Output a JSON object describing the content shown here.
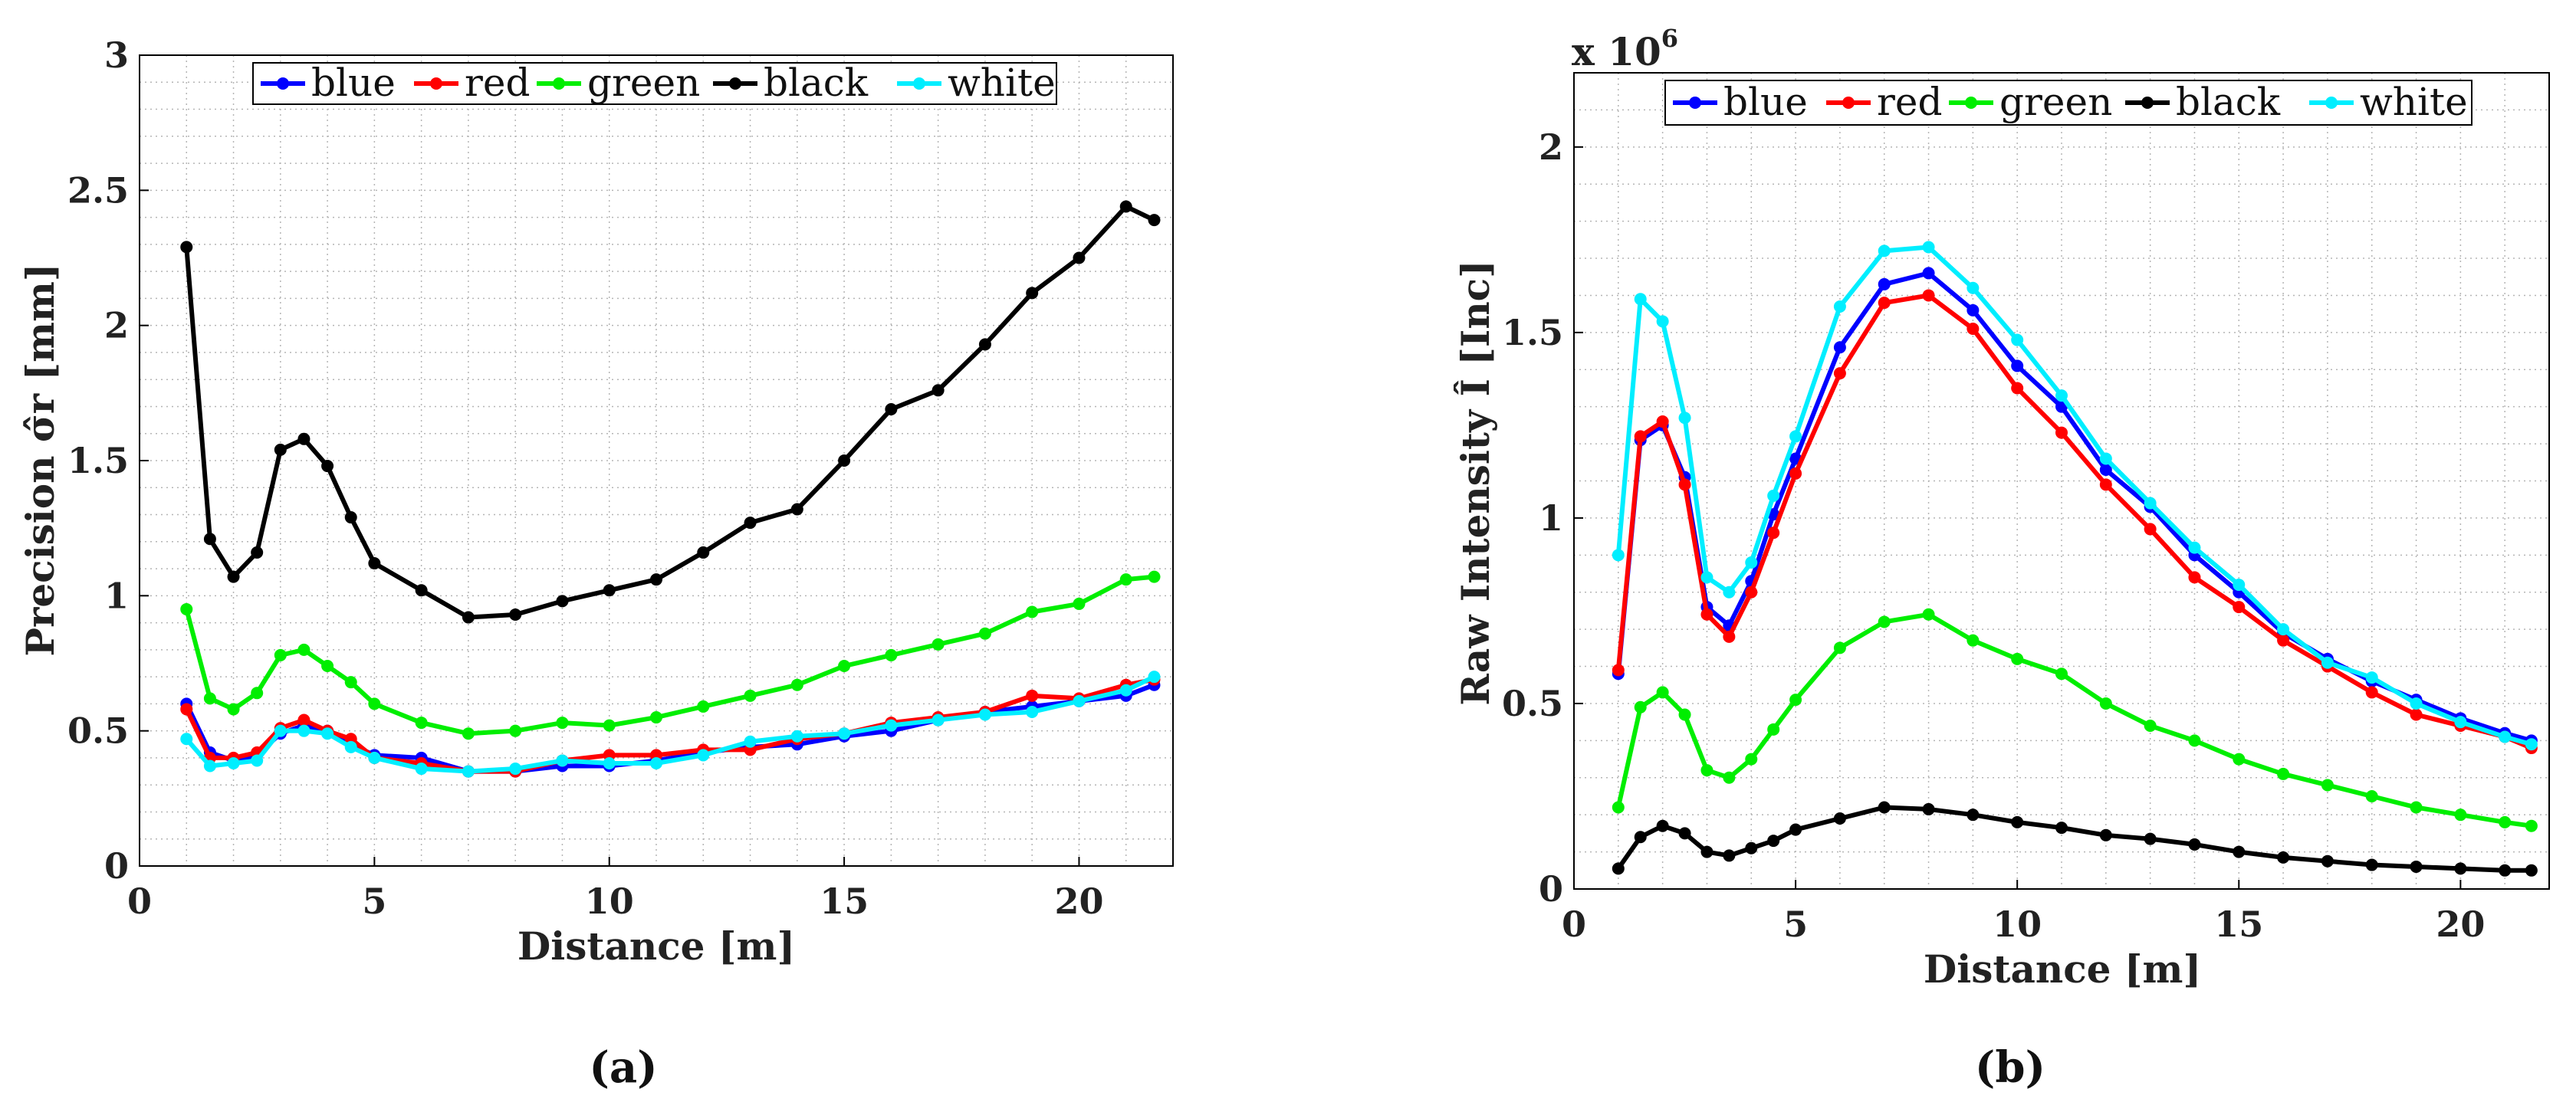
{
  "colors": {
    "blue": "#0000ff",
    "red": "#ff0000",
    "green": "#00ee00",
    "black": "#000000",
    "white": "#00eeff"
  },
  "chart_data": [
    {
      "type": "line",
      "caption": "(a)",
      "title": "",
      "xlabel": "Distance [m]",
      "ylabel": "Precision σ̂r [mm]",
      "xlim": [
        0,
        22
      ],
      "ylim": [
        0,
        3
      ],
      "xticks": [
        0,
        5,
        10,
        15,
        20
      ],
      "yticks": [
        0,
        0.5,
        1,
        1.5,
        2,
        2.5,
        3
      ],
      "ytick_labels": [
        "0",
        "0.5",
        "1",
        "1.5",
        "2",
        "2.5",
        "3"
      ],
      "exponent_label": "",
      "grid": true,
      "legend_position": "top-center",
      "x": [
        1,
        1.5,
        2,
        2.5,
        3,
        3.5,
        4,
        4.5,
        5,
        6,
        7,
        8,
        9,
        10,
        11,
        12,
        13,
        14,
        15,
        16,
        17,
        18,
        19,
        20,
        21,
        21.6
      ],
      "series": [
        {
          "name": "blue",
          "color_key": "blue",
          "values": [
            0.6,
            0.42,
            0.39,
            0.41,
            0.49,
            0.52,
            0.5,
            0.45,
            0.41,
            0.4,
            0.35,
            0.35,
            0.37,
            0.37,
            0.39,
            0.42,
            0.44,
            0.45,
            0.48,
            0.5,
            0.54,
            0.57,
            0.59,
            0.61,
            0.63,
            0.67
          ]
        },
        {
          "name": "red",
          "color_key": "red",
          "values": [
            0.58,
            0.4,
            0.4,
            0.42,
            0.51,
            0.54,
            0.5,
            0.47,
            0.4,
            0.38,
            0.35,
            0.35,
            0.39,
            0.41,
            0.41,
            0.43,
            0.43,
            0.47,
            0.49,
            0.53,
            0.55,
            0.57,
            0.63,
            0.62,
            0.67,
            0.69
          ]
        },
        {
          "name": "green",
          "color_key": "green",
          "values": [
            0.95,
            0.62,
            0.58,
            0.64,
            0.78,
            0.8,
            0.74,
            0.68,
            0.6,
            0.53,
            0.49,
            0.5,
            0.53,
            0.52,
            0.55,
            0.59,
            0.63,
            0.67,
            0.74,
            0.78,
            0.82,
            0.86,
            0.94,
            0.97,
            1.06,
            1.07
          ]
        },
        {
          "name": "black",
          "color_key": "black",
          "values": [
            2.29,
            1.21,
            1.07,
            1.16,
            1.54,
            1.58,
            1.48,
            1.29,
            1.12,
            1.02,
            0.92,
            0.93,
            0.98,
            1.02,
            1.06,
            1.16,
            1.27,
            1.32,
            1.5,
            1.69,
            1.76,
            1.93,
            2.12,
            2.25,
            2.44,
            2.39
          ]
        },
        {
          "name": "white",
          "color_key": "white",
          "values": [
            0.47,
            0.37,
            0.38,
            0.39,
            0.5,
            0.5,
            0.49,
            0.44,
            0.4,
            0.36,
            0.35,
            0.36,
            0.39,
            0.38,
            0.38,
            0.41,
            0.46,
            0.48,
            0.49,
            0.52,
            0.54,
            0.56,
            0.57,
            0.61,
            0.65,
            0.7
          ]
        }
      ]
    },
    {
      "type": "line",
      "caption": "(b)",
      "title": "",
      "xlabel": "Distance [m]",
      "ylabel": "Raw Intensity Î [Inc]",
      "xlim": [
        0,
        22
      ],
      "ylim": [
        0,
        2200000
      ],
      "xticks": [
        0,
        5,
        10,
        15,
        20
      ],
      "yticks": [
        0,
        500000,
        1000000,
        1500000,
        2000000
      ],
      "ytick_labels": [
        "0",
        "0.5",
        "1",
        "1.5",
        "2"
      ],
      "exponent_label": "x 10",
      "exponent_power": "6",
      "grid": true,
      "legend_position": "top-center",
      "x": [
        1,
        1.5,
        2,
        2.5,
        3,
        3.5,
        4,
        4.5,
        5,
        6,
        7,
        8,
        9,
        10,
        11,
        12,
        13,
        14,
        15,
        16,
        17,
        18,
        19,
        20,
        21,
        21.6
      ],
      "series": [
        {
          "name": "blue",
          "color_key": "blue",
          "values": [
            580000,
            1210000,
            1250000,
            1110000,
            760000,
            710000,
            830000,
            1010000,
            1160000,
            1460000,
            1630000,
            1660000,
            1560000,
            1410000,
            1300000,
            1130000,
            1030000,
            900000,
            800000,
            690000,
            620000,
            560000,
            510000,
            460000,
            420000,
            400000
          ]
        },
        {
          "name": "red",
          "color_key": "red",
          "values": [
            590000,
            1220000,
            1260000,
            1090000,
            740000,
            680000,
            800000,
            960000,
            1120000,
            1390000,
            1580000,
            1600000,
            1510000,
            1350000,
            1230000,
            1090000,
            970000,
            840000,
            760000,
            670000,
            600000,
            530000,
            470000,
            440000,
            410000,
            380000
          ]
        },
        {
          "name": "green",
          "color_key": "green",
          "values": [
            220000,
            490000,
            530000,
            470000,
            320000,
            300000,
            350000,
            430000,
            510000,
            650000,
            720000,
            740000,
            670000,
            620000,
            580000,
            500000,
            440000,
            400000,
            350000,
            310000,
            280000,
            250000,
            220000,
            200000,
            180000,
            170000
          ]
        },
        {
          "name": "black",
          "color_key": "black",
          "values": [
            55000,
            140000,
            170000,
            150000,
            100000,
            90000,
            110000,
            130000,
            160000,
            190000,
            220000,
            215000,
            200000,
            180000,
            165000,
            145000,
            135000,
            120000,
            100000,
            85000,
            75000,
            65000,
            60000,
            55000,
            50000,
            50000
          ]
        },
        {
          "name": "white",
          "color_key": "white",
          "values": [
            900000,
            1590000,
            1530000,
            1270000,
            840000,
            800000,
            880000,
            1060000,
            1220000,
            1570000,
            1720000,
            1730000,
            1620000,
            1480000,
            1330000,
            1160000,
            1040000,
            920000,
            820000,
            700000,
            610000,
            570000,
            500000,
            450000,
            410000,
            390000
          ]
        }
      ]
    }
  ]
}
